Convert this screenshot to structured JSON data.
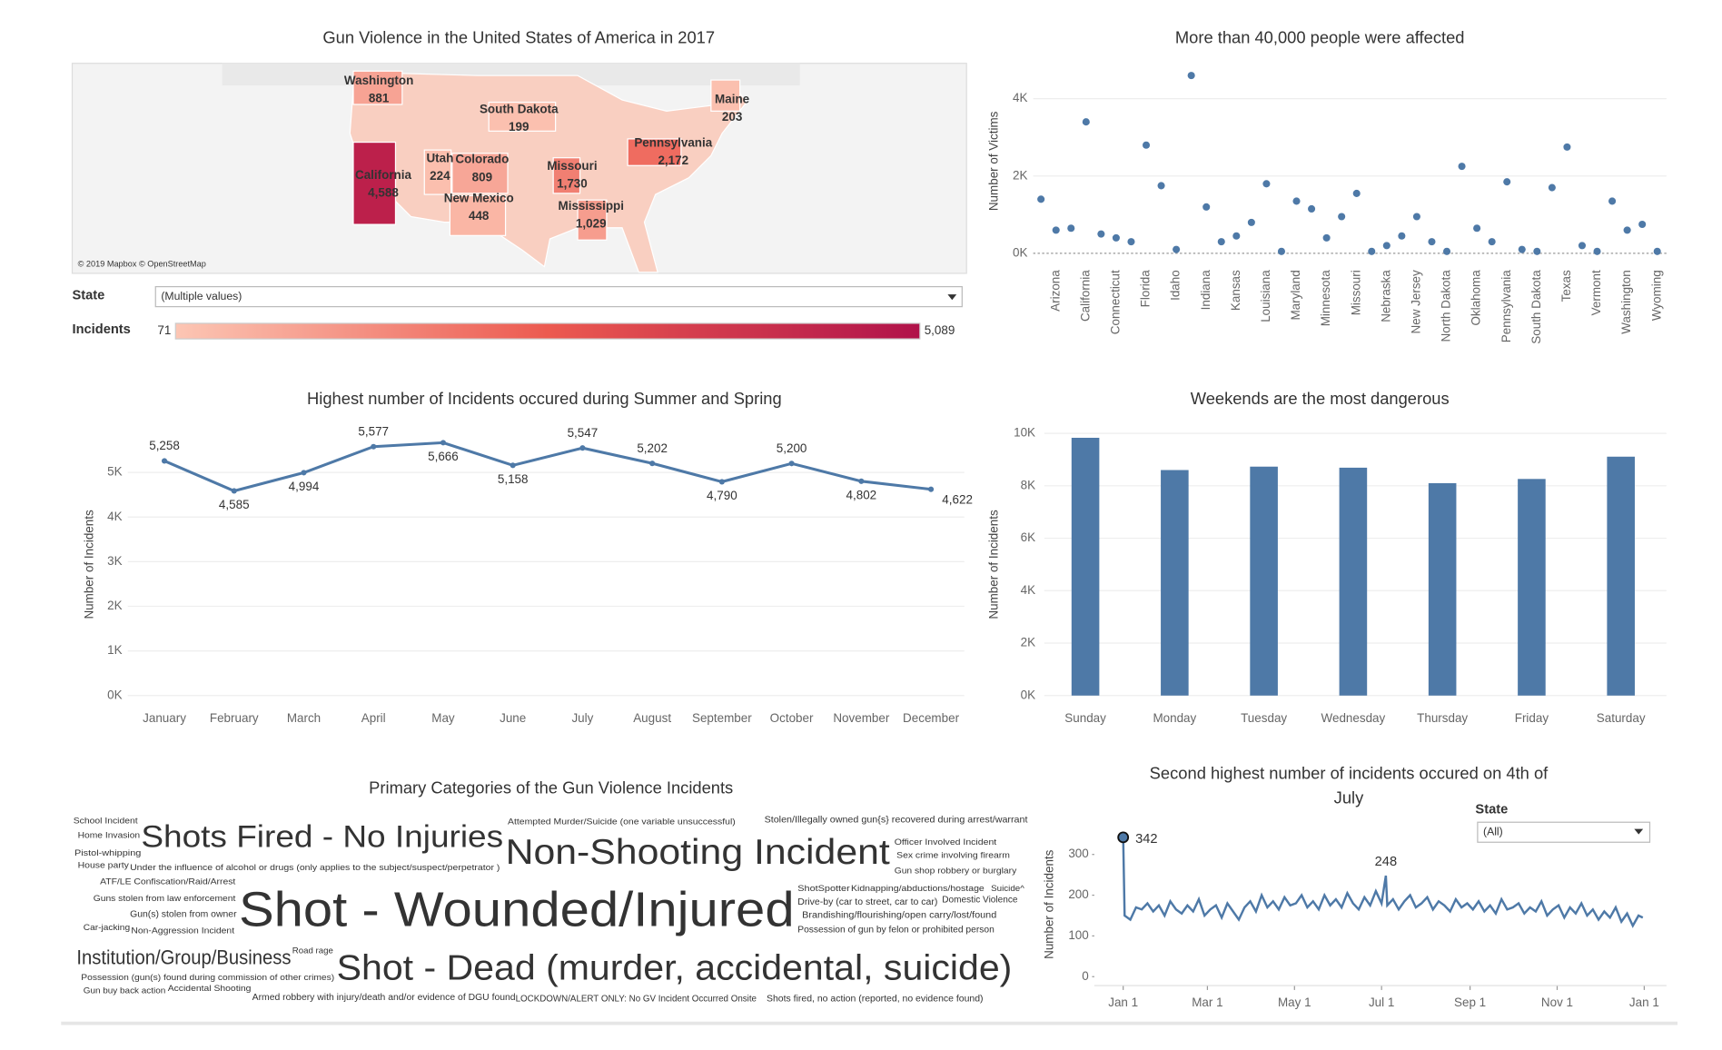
{
  "chart_data": [
    {
      "type": "map",
      "title": "Gun Violence in the United States of America in 2017",
      "categories": [
        "Washington",
        "South Dakota",
        "Maine",
        "Pennsylvania",
        "Utah",
        "Colorado",
        "Missouri",
        "California",
        "New Mexico",
        "Mississippi"
      ],
      "values": [
        881,
        199,
        203,
        2172,
        224,
        809,
        1730,
        4588,
        448,
        1029
      ],
      "value_labels": [
        "881",
        "199",
        "203",
        "2,172",
        "224",
        "809",
        "1,730",
        "4,588",
        "448",
        "1,029"
      ],
      "color_range": [
        "#fcc6b4",
        "#ec5a50",
        "#b0124a"
      ],
      "attribution": "© 2019 Mapbox © OpenStreetMap",
      "filter": {
        "label": "State",
        "value": "(Multiple values)"
      },
      "legend": {
        "label": "Incidents",
        "min": 71,
        "max": {
          "value": 5089,
          "label": "5,089"
        }
      }
    },
    {
      "type": "scatter",
      "title": "More than 40,000 people were affected",
      "y_label": "Number of Victims",
      "color": "#4e79a7",
      "grid": true,
      "categories": [
        null,
        "Arizona",
        null,
        "California",
        null,
        "Connecticut",
        null,
        "Florida",
        null,
        "Idaho",
        null,
        "Indiana",
        null,
        "Kansas",
        null,
        "Louisiana",
        null,
        "Maryland",
        null,
        "Minnesota",
        null,
        "Missouri",
        null,
        "Nebraska",
        null,
        "New Jersey",
        null,
        "North Dakota",
        null,
        "Oklahoma",
        null,
        "Pennsylvania",
        null,
        "South Dakota",
        null,
        "Texas",
        null,
        "Vermont",
        null,
        "Washington",
        null,
        "Wyoming"
      ],
      "values": [
        1400,
        600,
        650,
        3400,
        500,
        400,
        300,
        2800,
        1750,
        100,
        4600,
        1200,
        300,
        450,
        800,
        1800,
        50,
        1350,
        1150,
        400,
        950,
        1550,
        50,
        200,
        450,
        950,
        300,
        50,
        2250,
        650,
        300,
        1850,
        100,
        50,
        1700,
        2750,
        200,
        50,
        1350,
        600,
        750,
        50
      ],
      "ylim": [
        0,
        4800
      ],
      "yticks": [
        {
          "value": 0,
          "label": "0K"
        },
        {
          "value": 2000,
          "label": "2K"
        },
        {
          "value": 4000,
          "label": "4K"
        }
      ]
    },
    {
      "type": "line",
      "title": "Highest number of Incidents occured during Summer and Spring",
      "y_label": "Number of Incidents",
      "color": "#4e79a7",
      "grid": true,
      "categories": [
        "January",
        "February",
        "March",
        "April",
        "May",
        "June",
        "July",
        "August",
        "September",
        "October",
        "November",
        "December"
      ],
      "values": [
        5258,
        4585,
        4994,
        5577,
        5666,
        5158,
        5547,
        5202,
        4790,
        5200,
        4802,
        4622
      ],
      "value_labels": [
        "5,258",
        "4,585",
        "4,994",
        "5,577",
        "5,666",
        "5,158",
        "5,547",
        "5,202",
        "4,790",
        "5,200",
        "4,802",
        "4,622"
      ],
      "ylim": [
        0,
        6000
      ],
      "yticks": [
        {
          "value": 0,
          "label": "0K"
        },
        {
          "value": 1000,
          "label": "1K"
        },
        {
          "value": 2000,
          "label": "2K"
        },
        {
          "value": 3000,
          "label": "3K"
        },
        {
          "value": 4000,
          "label": "4K"
        },
        {
          "value": 5000,
          "label": "5K"
        }
      ]
    },
    {
      "type": "bar",
      "title": "Weekends are the most dangerous",
      "y_label": "Number of Incidents",
      "color": "#4e79a7",
      "grid": true,
      "categories": [
        "Sunday",
        "Monday",
        "Tuesday",
        "Wednesday",
        "Thursday",
        "Friday",
        "Saturday"
      ],
      "values": [
        9830,
        8600,
        8730,
        8690,
        8100,
        8260,
        9110
      ],
      "ylim": [
        0,
        10000
      ],
      "yticks": [
        {
          "value": 0,
          "label": "0K"
        },
        {
          "value": 2000,
          "label": "2K"
        },
        {
          "value": 4000,
          "label": "4K"
        },
        {
          "value": 6000,
          "label": "6K"
        },
        {
          "value": 8000,
          "label": "8K"
        },
        {
          "value": 10000,
          "label": "10K"
        }
      ]
    },
    {
      "type": "wordcloud",
      "title": "Primary Categories of the Gun Violence Incidents",
      "categories": [
        "School Incident",
        "Home Invasion",
        "Shots Fired - No Injuries",
        "Pistol-whipping",
        "House party",
        "Under the influence of alcohol or drugs (only applies to the subject/suspect/perpetrator )",
        "ATF/LE Confiscation/Raid/Arrest",
        "Guns stolen from law enforcement",
        "Shot - Wounded/Injured",
        "Non-Shooting Incident",
        "Attempted Murder/Suicide (one variable unsuccessful)",
        "Stolen/Illegally owned gun{s} recovered during arrest/warrant",
        "Officer Involved Incident",
        "Sex crime involving firearm",
        "Gun shop robbery or burglary",
        "ShotSpotter",
        "Kidnapping/abductions/hostage",
        "Suicide^",
        "Drive-by (car to street, car to car)",
        "Domestic Violence",
        "Brandishing/flourishing/open carry/lost/found",
        "Possession of gun by felon or prohibited person",
        "Institution/Group/Business",
        "Road rage",
        "Shot - Dead (murder, accidental, suicide)",
        "Possession (gun(s) found during commission of other crimes)",
        "Gun buy back action",
        "Accidental Shooting",
        "Armed robbery with injury/death and/or evidence of DGU found",
        "LOCKDOWN/ALERT ONLY: No GV Incident Occurred Onsite",
        "Shots fired, no action (reported, no evidence found)",
        "Gun(s) stolen from owner",
        "Car-jacking",
        "Non-Aggression Incident"
      ],
      "values": [
        30,
        30,
        4400,
        30,
        25,
        20,
        25,
        15,
        13000,
        6100,
        25,
        40,
        30,
        30,
        30,
        30,
        30,
        30,
        35,
        40,
        35,
        35,
        1300,
        15,
        6100,
        25,
        25,
        30,
        35,
        35,
        35,
        35,
        25,
        30
      ],
      "colors": [
        "#3c8d9a",
        "#9b5fb3",
        "#6b6b6b",
        "#59a14f",
        "#d37295",
        "#8c6d31",
        "#59a14f",
        "#f1a2a9",
        "#f28e80",
        "#f28e2b",
        "#8cd17d",
        "#fabfd2",
        "#f28e2b",
        "#499894",
        "#79706e",
        "#e15759",
        "#b07aa1",
        "#d37295",
        "#4e79a7",
        "#2b7bb9",
        "#b6992d",
        "#c0504d",
        "#9c755f",
        "#f1a340",
        "#e15759",
        "#59a14f",
        "#555555",
        "#86bcb6",
        "#f1a340",
        "#4e79a7",
        "#aaaaaa",
        "#b6335a",
        "#e8c22b",
        "#86b6e0"
      ]
    },
    {
      "type": "timeseries",
      "title": "Second highest number of incidents occured on 4th of July",
      "y_label": "Number of Incidents",
      "color": "#4e79a7",
      "filter": {
        "label": "State",
        "value": "(All)"
      },
      "x": [
        1,
        2,
        6,
        10,
        14,
        18,
        22,
        26,
        30,
        34,
        38,
        42,
        46,
        50,
        54,
        58,
        62,
        66,
        70,
        74,
        78,
        82,
        86,
        90,
        94,
        98,
        102,
        106,
        110,
        114,
        118,
        122,
        126,
        130,
        134,
        138,
        142,
        146,
        150,
        154,
        158,
        162,
        166,
        170,
        174,
        178,
        182,
        185,
        186,
        190,
        194,
        198,
        202,
        206,
        210,
        214,
        218,
        222,
        226,
        230,
        234,
        238,
        242,
        246,
        250,
        254,
        258,
        262,
        266,
        270,
        274,
        278,
        282,
        286,
        290,
        294,
        298,
        302,
        306,
        310,
        314,
        318,
        322,
        326,
        330,
        334,
        338,
        342,
        346,
        350,
        354,
        358,
        362,
        365
      ],
      "values": [
        342,
        150,
        140,
        170,
        165,
        180,
        160,
        175,
        150,
        185,
        165,
        155,
        175,
        160,
        190,
        150,
        165,
        175,
        145,
        180,
        160,
        140,
        170,
        185,
        160,
        200,
        170,
        185,
        165,
        195,
        175,
        180,
        200,
        170,
        185,
        165,
        200,
        175,
        190,
        170,
        205,
        180,
        165,
        195,
        175,
        210,
        180,
        248,
        175,
        190,
        165,
        185,
        200,
        170,
        180,
        195,
        165,
        185,
        175,
        160,
        190,
        170,
        180,
        165,
        185,
        160,
        175,
        155,
        190,
        165,
        170,
        180,
        155,
        170,
        160,
        185,
        150,
        165,
        175,
        145,
        170,
        155,
        180,
        150,
        165,
        140,
        160,
        145,
        170,
        135,
        155,
        125,
        150,
        145
      ],
      "annotations": [
        {
          "x": 1,
          "y": 342
        },
        {
          "x": 185,
          "y": 248
        }
      ],
      "xlim": [
        1,
        366
      ],
      "xticks": [
        {
          "value": 1,
          "label": "Jan 1"
        },
        {
          "value": 60,
          "label": "Mar 1"
        },
        {
          "value": 121,
          "label": "May 1"
        },
        {
          "value": 182,
          "label": "Jul 1"
        },
        {
          "value": 244,
          "label": "Sep 1"
        },
        {
          "value": 305,
          "label": "Nov 1"
        },
        {
          "value": 366,
          "label": "Jan 1"
        }
      ],
      "ylim": [
        0,
        360
      ],
      "yticks": [
        0,
        100,
        200,
        300
      ]
    }
  ]
}
